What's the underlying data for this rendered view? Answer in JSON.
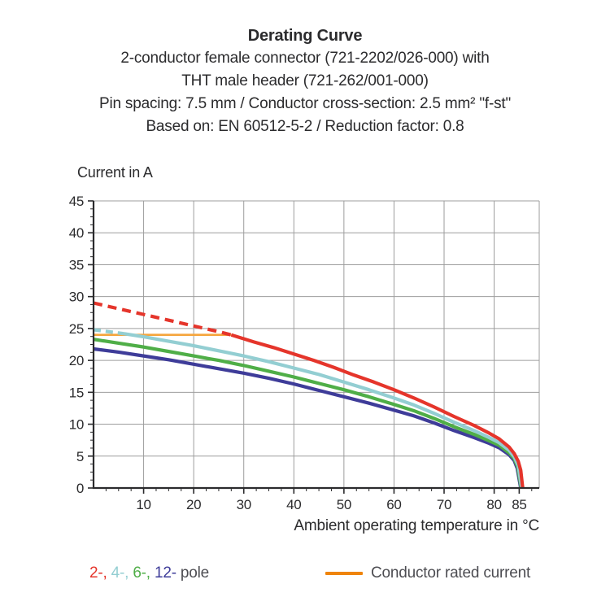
{
  "page": {
    "background": "#ffffff"
  },
  "title_block": {
    "title": "Derating Curve",
    "subtitle_lines": [
      "2-conductor female connector (721-2202/026-000) with",
      "THT male header (721-262/001-000)",
      "Pin spacing: 7.5 mm / Conductor cross-section: 2.5 mm² \"f-st\"",
      "Based on: EN 60512-5-2 / Reduction factor: 0.8"
    ]
  },
  "chart_data": {
    "type": "line",
    "title": "Derating Curve",
    "ylabel": "Current in A",
    "xlabel": "Ambient operating temperature in °C",
    "xlim": [
      0,
      89
    ],
    "ylim": [
      0,
      45
    ],
    "x_major_ticks": [
      10,
      20,
      30,
      40,
      50,
      60,
      70,
      80,
      85
    ],
    "x_gridlines": [
      10,
      20,
      30,
      40,
      50,
      60,
      70,
      80,
      89
    ],
    "x_minor_tick_step": 2.5,
    "y_major_ticks": [
      0,
      5,
      10,
      15,
      20,
      25,
      30,
      35,
      40,
      45
    ],
    "y_gridlines": [
      5,
      10,
      15,
      20,
      25,
      30,
      35,
      40,
      45
    ],
    "y_minor_tick_step": 1.25,
    "grid": true,
    "grid_color": "#9d9d9d",
    "axis_color": "#2b2b2d",
    "tick_label_color": "#2b2b2d",
    "legend_position": "bottom",
    "series": [
      {
        "name": "2-pole",
        "color": "#E5352B",
        "width": 4.2,
        "segments": [
          {
            "style": "dashed",
            "dash": [
              11,
              7
            ],
            "points": [
              [
                0,
                29
              ],
              [
                5,
                28.1
              ],
              [
                10,
                27.2
              ],
              [
                15,
                26.3
              ],
              [
                20,
                25.4
              ],
              [
                25,
                24.5
              ],
              [
                27.5,
                24
              ]
            ]
          },
          {
            "style": "solid",
            "points": [
              [
                27.5,
                24
              ],
              [
                32,
                22.9
              ],
              [
                36,
                22.0
              ],
              [
                40,
                21.0
              ],
              [
                44,
                20.0
              ],
              [
                48,
                18.9
              ],
              [
                52,
                17.7
              ],
              [
                56,
                16.6
              ],
              [
                60,
                15.4
              ],
              [
                64,
                14.1
              ],
              [
                68,
                12.7
              ],
              [
                72,
                11.2
              ],
              [
                76,
                9.8
              ],
              [
                79,
                8.6
              ],
              [
                81,
                7.7
              ],
              [
                83,
                6.4
              ],
              [
                84,
                5.4
              ],
              [
                84.8,
                4.2
              ],
              [
                85.3,
                2.8
              ],
              [
                85.7,
                0
              ]
            ]
          }
        ]
      },
      {
        "name": "4-pole",
        "color": "#93CED2",
        "width": 4.2,
        "segments": [
          {
            "style": "dashed",
            "dash": [
              9,
              6
            ],
            "points": [
              [
                0,
                24.8
              ],
              [
                3,
                24.5
              ],
              [
                6,
                24.2
              ]
            ]
          },
          {
            "style": "solid",
            "points": [
              [
                6,
                24.2
              ],
              [
                10,
                23.7
              ],
              [
                15,
                23.0
              ],
              [
                20,
                22.3
              ],
              [
                25,
                21.5
              ],
              [
                30,
                20.7
              ],
              [
                35,
                19.8
              ],
              [
                40,
                18.8
              ],
              [
                45,
                17.8
              ],
              [
                50,
                16.6
              ],
              [
                55,
                15.4
              ],
              [
                60,
                14.1
              ],
              [
                64,
                13.0
              ],
              [
                68,
                11.7
              ],
              [
                72,
                10.3
              ],
              [
                76,
                9.0
              ],
              [
                79,
                7.9
              ],
              [
                81,
                7.1
              ],
              [
                83,
                5.9
              ],
              [
                84,
                4.9
              ],
              [
                84.8,
                3.5
              ],
              [
                85.5,
                0
              ]
            ]
          }
        ]
      },
      {
        "name": "6-pole",
        "color": "#4FAE47",
        "width": 4.2,
        "segments": [
          {
            "style": "solid",
            "points": [
              [
                0,
                23.3
              ],
              [
                5,
                22.7
              ],
              [
                10,
                22.1
              ],
              [
                15,
                21.4
              ],
              [
                20,
                20.7
              ],
              [
                25,
                20.0
              ],
              [
                30,
                19.2
              ],
              [
                35,
                18.3
              ],
              [
                40,
                17.4
              ],
              [
                45,
                16.4
              ],
              [
                50,
                15.4
              ],
              [
                55,
                14.3
              ],
              [
                60,
                13.1
              ],
              [
                64,
                12.1
              ],
              [
                68,
                10.9
              ],
              [
                72,
                9.6
              ],
              [
                76,
                8.4
              ],
              [
                79,
                7.4
              ],
              [
                81,
                6.7
              ],
              [
                83,
                5.5
              ],
              [
                84,
                4.6
              ],
              [
                84.7,
                3.3
              ],
              [
                85.4,
                0
              ]
            ]
          }
        ]
      },
      {
        "name": "12-pole",
        "color": "#3E3C99",
        "width": 4.2,
        "segments": [
          {
            "style": "solid",
            "points": [
              [
                0,
                21.8
              ],
              [
                5,
                21.3
              ],
              [
                10,
                20.7
              ],
              [
                15,
                20.1
              ],
              [
                20,
                19.4
              ],
              [
                25,
                18.7
              ],
              [
                30,
                18.0
              ],
              [
                35,
                17.2
              ],
              [
                40,
                16.3
              ],
              [
                45,
                15.3
              ],
              [
                50,
                14.3
              ],
              [
                55,
                13.3
              ],
              [
                60,
                12.2
              ],
              [
                64,
                11.3
              ],
              [
                68,
                10.2
              ],
              [
                72,
                9.0
              ],
              [
                76,
                7.9
              ],
              [
                79,
                7.0
              ],
              [
                81,
                6.3
              ],
              [
                83,
                5.2
              ],
              [
                84,
                4.3
              ],
              [
                84.6,
                3.1
              ],
              [
                85.3,
                0
              ]
            ]
          }
        ]
      },
      {
        "name": "Conductor rated current",
        "color": "#F5A53C",
        "width": 2.6,
        "segments": [
          {
            "style": "solid",
            "points": [
              [
                0,
                24
              ],
              [
                27.5,
                24
              ]
            ]
          }
        ]
      }
    ]
  },
  "legend": {
    "pole_parts": [
      {
        "text": "2-,",
        "color": "#E5352B"
      },
      {
        "text": " 4-,",
        "color": "#93CED2"
      },
      {
        "text": " 6-,",
        "color": "#4FAE47"
      },
      {
        "text": " 12-",
        "color": "#3E3C99"
      },
      {
        "text": " pole",
        "color": "#4D4D52"
      }
    ],
    "rated_swatch_color": "#EF840A",
    "rated_label": "Conductor rated current"
  }
}
